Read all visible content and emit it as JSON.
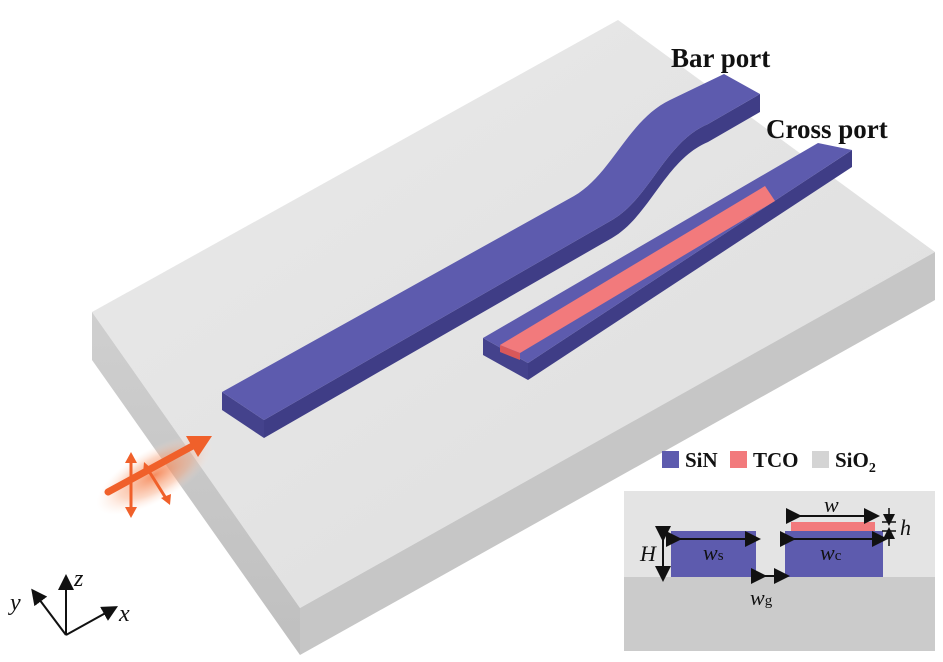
{
  "ports": {
    "bar": "Bar port",
    "cross": "Cross port"
  },
  "legend": {
    "items": [
      {
        "label": "SiN",
        "color": "#5d5bae"
      },
      {
        "label": "TCO",
        "color": "#f27a7c"
      },
      {
        "label": "SiO",
        "subscript": "2",
        "color": "#d4d4d4"
      }
    ]
  },
  "cross_section": {
    "H": "H",
    "w": "w",
    "h": "h",
    "ws_main": "w",
    "ws_sub": "s",
    "wc_main": "w",
    "wc_sub": "c",
    "wg_main": "w",
    "wg_sub": "g"
  },
  "axes": {
    "x": "x",
    "y": "y",
    "z": "z"
  },
  "colors": {
    "sin": "#5d5bae",
    "tco": "#f27a7c",
    "sio2": "#d4d4d4",
    "light": "#f0602a"
  }
}
